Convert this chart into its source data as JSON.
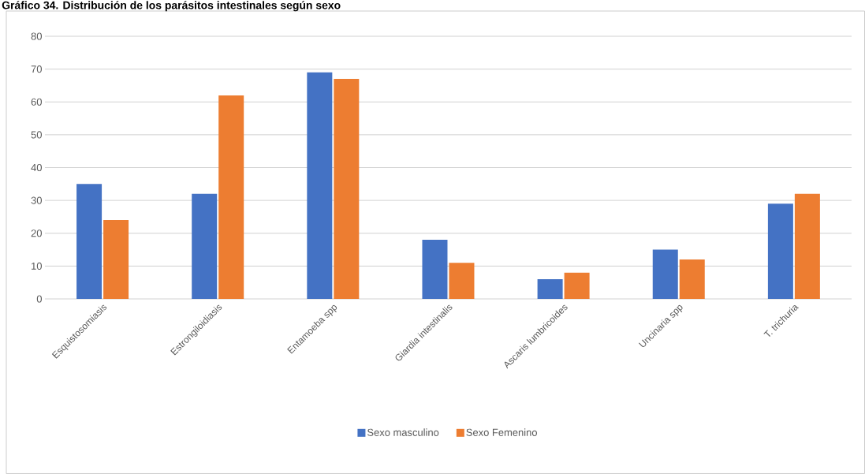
{
  "chart_data": {
    "type": "bar",
    "title": "Gráfico 34. Distribución de los parásitos intestinales según sexo",
    "categories": [
      "Esquistosomiasis",
      "Estrongiloidiasis",
      "Entamoeba spp",
      "Giardia intestinalis",
      "Ascaris lumbricoides",
      "Uncinaria spp",
      "T. trichuria"
    ],
    "series": [
      {
        "name": "Sexo masculino",
        "color": "#4472c4",
        "values": [
          35,
          32,
          69,
          18,
          6,
          15,
          29
        ]
      },
      {
        "name": "Sexo Femenino",
        "color": "#ed7d31",
        "values": [
          24,
          62,
          67,
          11,
          8,
          12,
          32
        ]
      }
    ],
    "ylim": [
      0,
      80
    ],
    "yticks": [
      0,
      10,
      20,
      30,
      40,
      50,
      60,
      70,
      80
    ],
    "grid": "y",
    "legend": "bottom"
  }
}
